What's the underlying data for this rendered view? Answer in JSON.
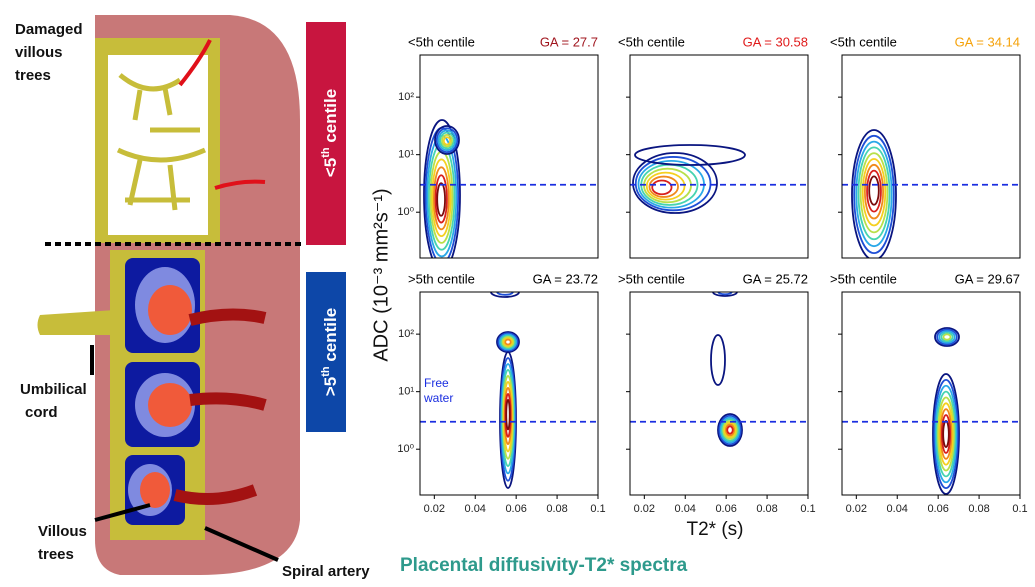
{
  "illustration": {
    "labels": [
      "Damaged",
      "villous",
      "trees",
      "Umbilical",
      "cord",
      "Villous",
      "trees",
      "Spiral artery"
    ],
    "side_bars": [
      {
        "pre": "<5",
        "sup": "th",
        "post": " centile"
      },
      {
        "pre": ">5",
        "sup": "th",
        "post": " centile"
      }
    ]
  },
  "spectra": {
    "y_label": "ADC (10⁻³ mm²s⁻¹)",
    "x_label": "T2* (s)",
    "footer": "Placental diffusivity-T2* spectra",
    "annotation": [
      "Free",
      "water"
    ],
    "xlim": [
      0.013,
      0.1
    ],
    "xticks": [
      0.02,
      0.04,
      0.06,
      0.08,
      0.1
    ],
    "ylim": [
      0.16,
      540
    ],
    "yticks": [
      {
        "value": 1,
        "label": "10⁰"
      },
      {
        "value": 10,
        "label": "10¹"
      },
      {
        "value": 100,
        "label": "10²"
      }
    ],
    "free_water_line": 3,
    "panels": [
      {
        "title": "<5th centile",
        "ga": "GA = 27.7",
        "ga_color": "#a0151e"
      },
      {
        "title": "<5th centile",
        "ga": "GA = 30.58",
        "ga_color": "#e01b1b"
      },
      {
        "title": "<5th centile",
        "ga": "GA = 34.14",
        "ga_color": "#f5a20a"
      },
      {
        "title": ">5th centile",
        "ga": "GA = 23.72",
        "ga_color": "#000000"
      },
      {
        "title": ">5th centile",
        "ga": "GA = 25.72",
        "ga_color": "#000000"
      },
      {
        "title": ">5th centile",
        "ga": "GA = 29.67",
        "ga_color": "#000000"
      }
    ]
  }
}
